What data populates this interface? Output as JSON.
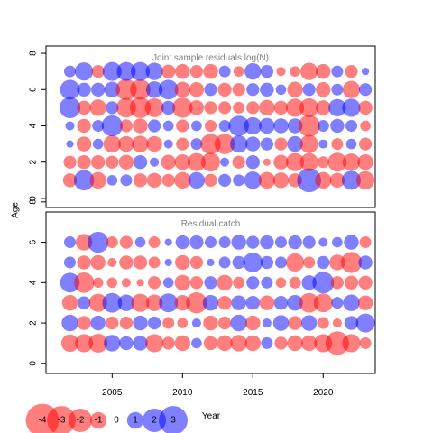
{
  "chart_data": {
    "type": "scatter",
    "subtype": "bubble-residuals",
    "xlabel": "Year",
    "ylabel": "Age",
    "xlim": [
      2000.3,
      2023.7
    ],
    "x_ticks": [
      2005,
      2010,
      2015,
      2020
    ],
    "x_tick_labels": [
      "2005",
      "2010",
      "2015",
      "2020"
    ],
    "y_ticks": [
      0,
      2,
      4,
      6,
      8
    ],
    "y_tick_labels": [
      "0",
      "2",
      "4",
      "6",
      "8"
    ],
    "colors": {
      "positive": "#0000ff",
      "negative": "#ff0000"
    },
    "panels": [
      {
        "title": "Joint sample residuals log(N)",
        "ylim": [
          -0.5,
          8.4
        ],
        "ages": [
          1,
          2,
          3,
          4,
          5,
          6,
          7
        ],
        "years": [
          2002,
          2003,
          2004,
          2005,
          2006,
          2007,
          2008,
          2009,
          2010,
          2011,
          2012,
          2013,
          2014,
          2015,
          2016,
          2017,
          2018,
          2019,
          2020,
          2021,
          2022,
          2023
        ],
        "residuals": [
          [
            -0.7,
            1.5,
            -1.0,
            0.4,
            0.5,
            -0.7,
            -0.8,
            -0.6,
            -1.0,
            1.0,
            -0.6,
            0.6,
            0.5,
            1.1,
            -1.0,
            -0.9,
            -0.7,
            2.1,
            -1.0,
            -0.8,
            1.3,
            -1.2
          ],
          [
            -0.6,
            -0.7,
            -0.7,
            -0.6,
            -0.8,
            0.7,
            0.3,
            -0.8,
            -0.9,
            -1.2,
            -1.3,
            0.3,
            -0.6,
            0.7,
            -0.2,
            -0.8,
            -1.2,
            -1.2,
            -0.5,
            -1.3,
            -1.1,
            -0.9
          ],
          [
            0.2,
            -0.8,
            0.4,
            -1.1,
            -0.9,
            -1.0,
            -0.9,
            0.3,
            -0.6,
            0.5,
            -1.5,
            -1.5,
            1.1,
            0.8,
            0.6,
            -0.6,
            0.9,
            -1.2,
            0.3,
            -0.5,
            0.4,
            -0.6
          ],
          [
            0.3,
            -0.7,
            0.5,
            1.6,
            -0.6,
            -0.8,
            0.6,
            0.4,
            -0.6,
            0.4,
            -0.5,
            0.5,
            1.5,
            1.1,
            0.9,
            0.8,
            0.8,
            -1.7,
            0.5,
            0.7,
            0.5,
            -0.4
          ],
          [
            1.6,
            -0.7,
            -1.0,
            0.6,
            -1.4,
            -1.6,
            -1.3,
            0.7,
            -1.5,
            -0.8,
            -0.6,
            -0.6,
            -0.5,
            -0.6,
            -0.9,
            -0.7,
            -1.2,
            -1.3,
            -0.8,
            1.1,
            1.2,
            -0.7
          ],
          [
            1.4,
            0.7,
            0.7,
            0.9,
            -1.6,
            -1.5,
            1.0,
            1.4,
            -0.9,
            -0.8,
            0.6,
            -0.7,
            -0.6,
            0.6,
            0.7,
            0.4,
            -0.9,
            0.6,
            -0.8,
            0.5,
            -1.1,
            0.6
          ],
          [
            0.5,
            1.2,
            -0.6,
            1.3,
            1.3,
            1.3,
            1.1,
            -0.7,
            -0.8,
            -0.6,
            -0.8,
            0.5,
            -0.4,
            1.0,
            0.6,
            -0.3,
            -0.4,
            -1.1,
            -0.8,
            0.5,
            -0.6,
            0.2
          ]
        ]
      },
      {
        "title": "Residual catch",
        "ylim": [
          -0.5,
          7.5
        ],
        "ages": [
          1,
          2,
          3,
          4,
          5,
          6
        ],
        "years": [
          2002,
          2003,
          2004,
          2005,
          2006,
          2007,
          2008,
          2009,
          2010,
          2011,
          2012,
          2013,
          2014,
          2015,
          2016,
          2017,
          2018,
          2019,
          2020,
          2021,
          2022,
          2023
        ],
        "residuals": [
          [
            -1.1,
            -1.2,
            -1.3,
            1.0,
            0.7,
            0.8,
            -1.2,
            -0.6,
            -0.9,
            0.4,
            -0.7,
            -0.9,
            -1.0,
            -0.9,
            0.5,
            -0.6,
            -0.9,
            -0.9,
            -1.2,
            -2.0,
            -1.2,
            -0.5
          ],
          [
            1.0,
            -0.7,
            0.8,
            -0.6,
            -0.6,
            0.8,
            0.6,
            -0.5,
            -0.4,
            0.3,
            -0.8,
            -0.6,
            1.0,
            -0.8,
            0.3,
            0.9,
            -0.7,
            0.9,
            -0.5,
            -0.3,
            0.7,
            1.3
          ],
          [
            -0.9,
            0.6,
            -1.2,
            1.4,
            1.0,
            -1.2,
            -1.0,
            1.3,
            -0.9,
            -1.6,
            0.9,
            -0.7,
            0.8,
            0.7,
            -0.8,
            0.7,
            0.9,
            -1.4,
            -1.3,
            0.5,
            1.0,
            -0.8
          ],
          [
            1.4,
            -1.5,
            -0.4,
            -0.4,
            -0.3,
            -0.2,
            -0.6,
            0.4,
            -0.9,
            -0.6,
            0.6,
            -0.9,
            -0.5,
            0.6,
            0.5,
            -0.4,
            -0.5,
            0.8,
            1.7,
            -0.6,
            -0.7,
            -0.7
          ],
          [
            0.5,
            -0.7,
            -0.8,
            -0.3,
            -0.7,
            -0.7,
            -0.5,
            0.2,
            -0.8,
            -0.6,
            0.2,
            0.5,
            0.6,
            1.4,
            0.6,
            0.5,
            -1.2,
            -0.5,
            0.6,
            -0.9,
            -1.6,
            0.7
          ],
          [
            0.5,
            -1.0,
            1.6,
            -0.5,
            -0.6,
            0.4,
            -0.5,
            0.2,
            0.7,
            0.7,
            0.5,
            0.5,
            0.8,
            0.6,
            0.7,
            0.5,
            0.7,
            0.6,
            0.3,
            0.4,
            0.8,
            -0.5
          ]
        ]
      }
    ],
    "legend": {
      "placement": "bottom-left",
      "values": [
        -4,
        -3,
        -2,
        -1,
        0,
        1,
        2,
        3
      ],
      "labels": [
        "-4",
        "-3",
        "-2",
        "-1",
        "0",
        "1",
        "2",
        "3"
      ]
    }
  }
}
